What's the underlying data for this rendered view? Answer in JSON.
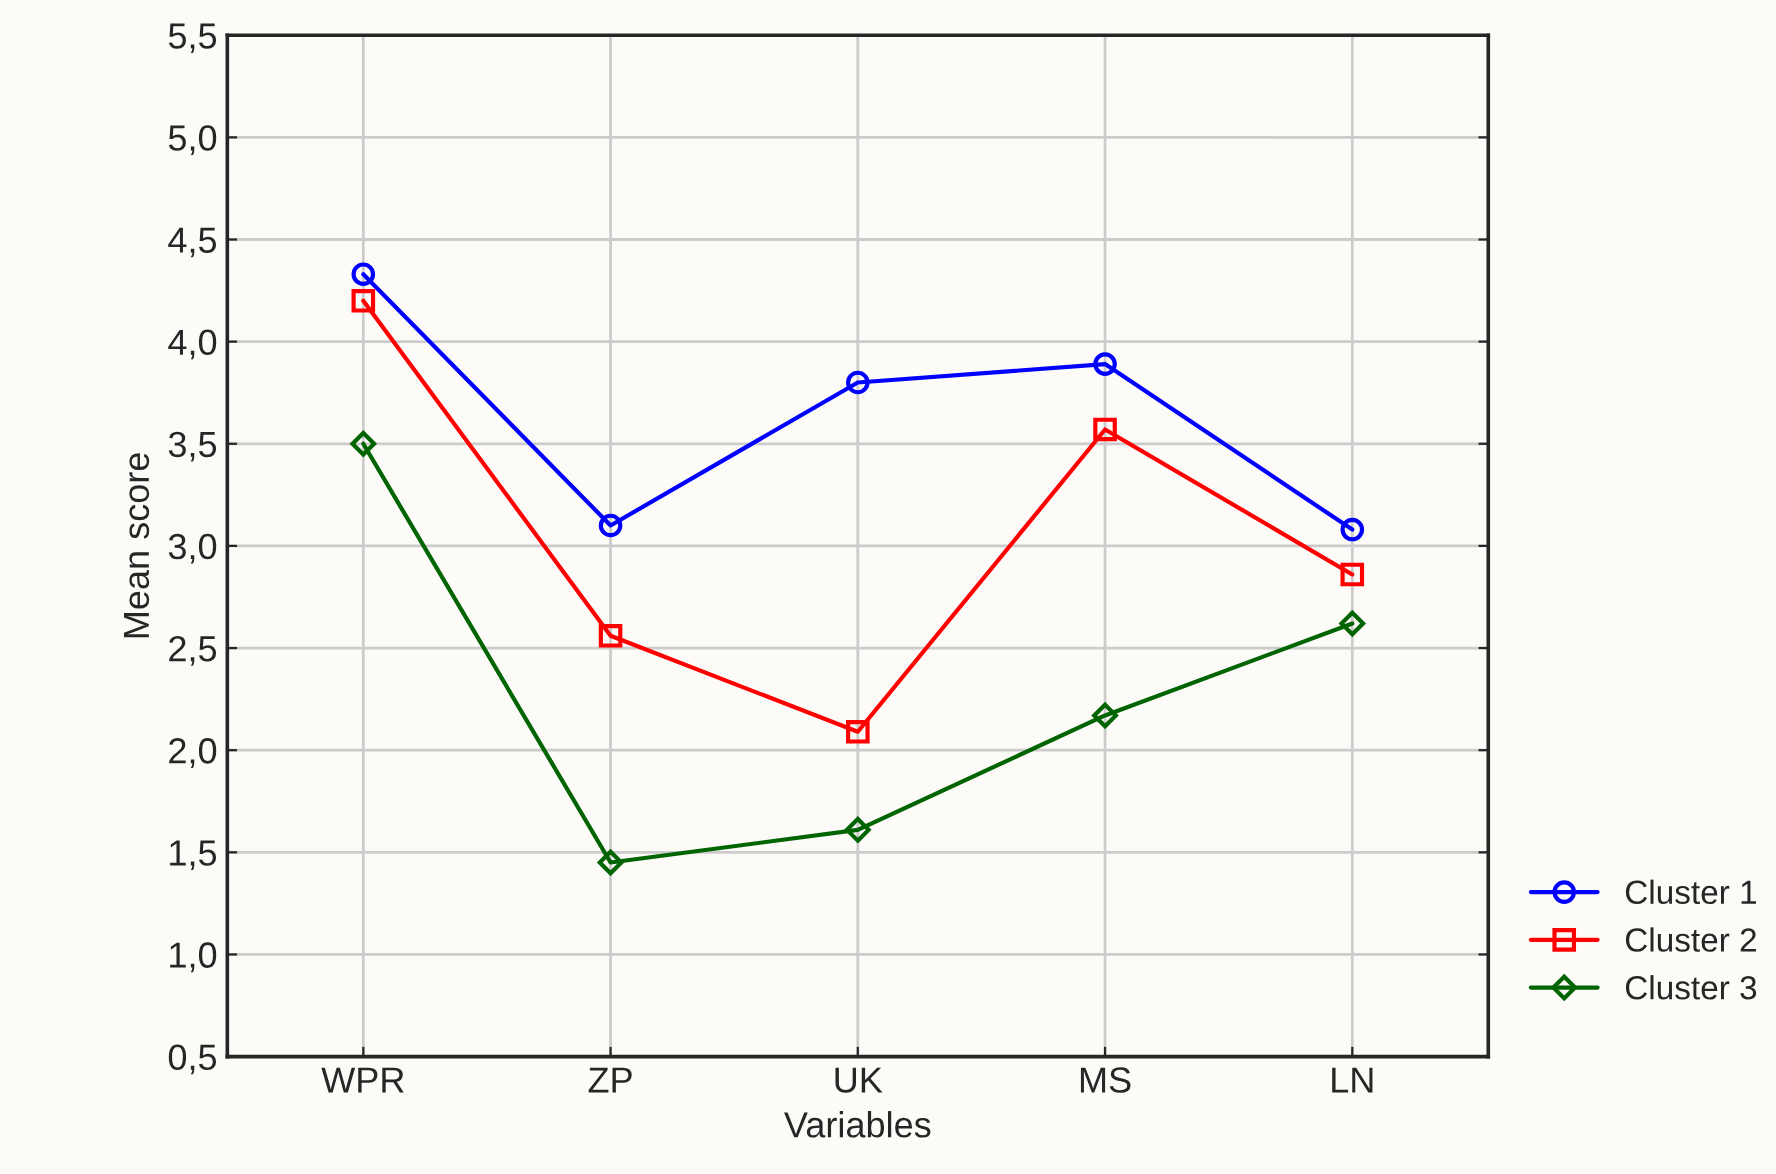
{
  "chart_data": {
    "type": "line",
    "xlabel": "Variables",
    "ylabel": "Mean score",
    "categories": [
      "WPR",
      "ZP",
      "UK",
      "MS",
      "LN"
    ],
    "series": [
      {
        "name": "Cluster 1",
        "color": "#0000ff",
        "marker": "circle",
        "values": [
          4.33,
          3.1,
          3.8,
          3.89,
          3.08
        ]
      },
      {
        "name": "Cluster 2",
        "color": "#ff0000",
        "marker": "square",
        "values": [
          4.2,
          2.56,
          2.09,
          3.57,
          2.86
        ]
      },
      {
        "name": "Cluster 3",
        "color": "#006400",
        "marker": "diamond",
        "values": [
          3.5,
          1.45,
          1.61,
          2.17,
          2.62
        ]
      }
    ],
    "ylim": [
      0.5,
      5.5
    ],
    "yticks": [
      {
        "value": 0.5,
        "label": "0,5"
      },
      {
        "value": 1.0,
        "label": "1,0"
      },
      {
        "value": 1.5,
        "label": "1,5"
      },
      {
        "value": 2.0,
        "label": "2,0"
      },
      {
        "value": 2.5,
        "label": "2,5"
      },
      {
        "value": 3.0,
        "label": "3,0"
      },
      {
        "value": 3.5,
        "label": "3,5"
      },
      {
        "value": 4.0,
        "label": "4,0"
      },
      {
        "value": 4.5,
        "label": "4,5"
      },
      {
        "value": 5.0,
        "label": "5,0"
      },
      {
        "value": 5.5,
        "label": "5,5"
      }
    ],
    "grid": true,
    "legend": "right",
    "line_style": "solid"
  }
}
